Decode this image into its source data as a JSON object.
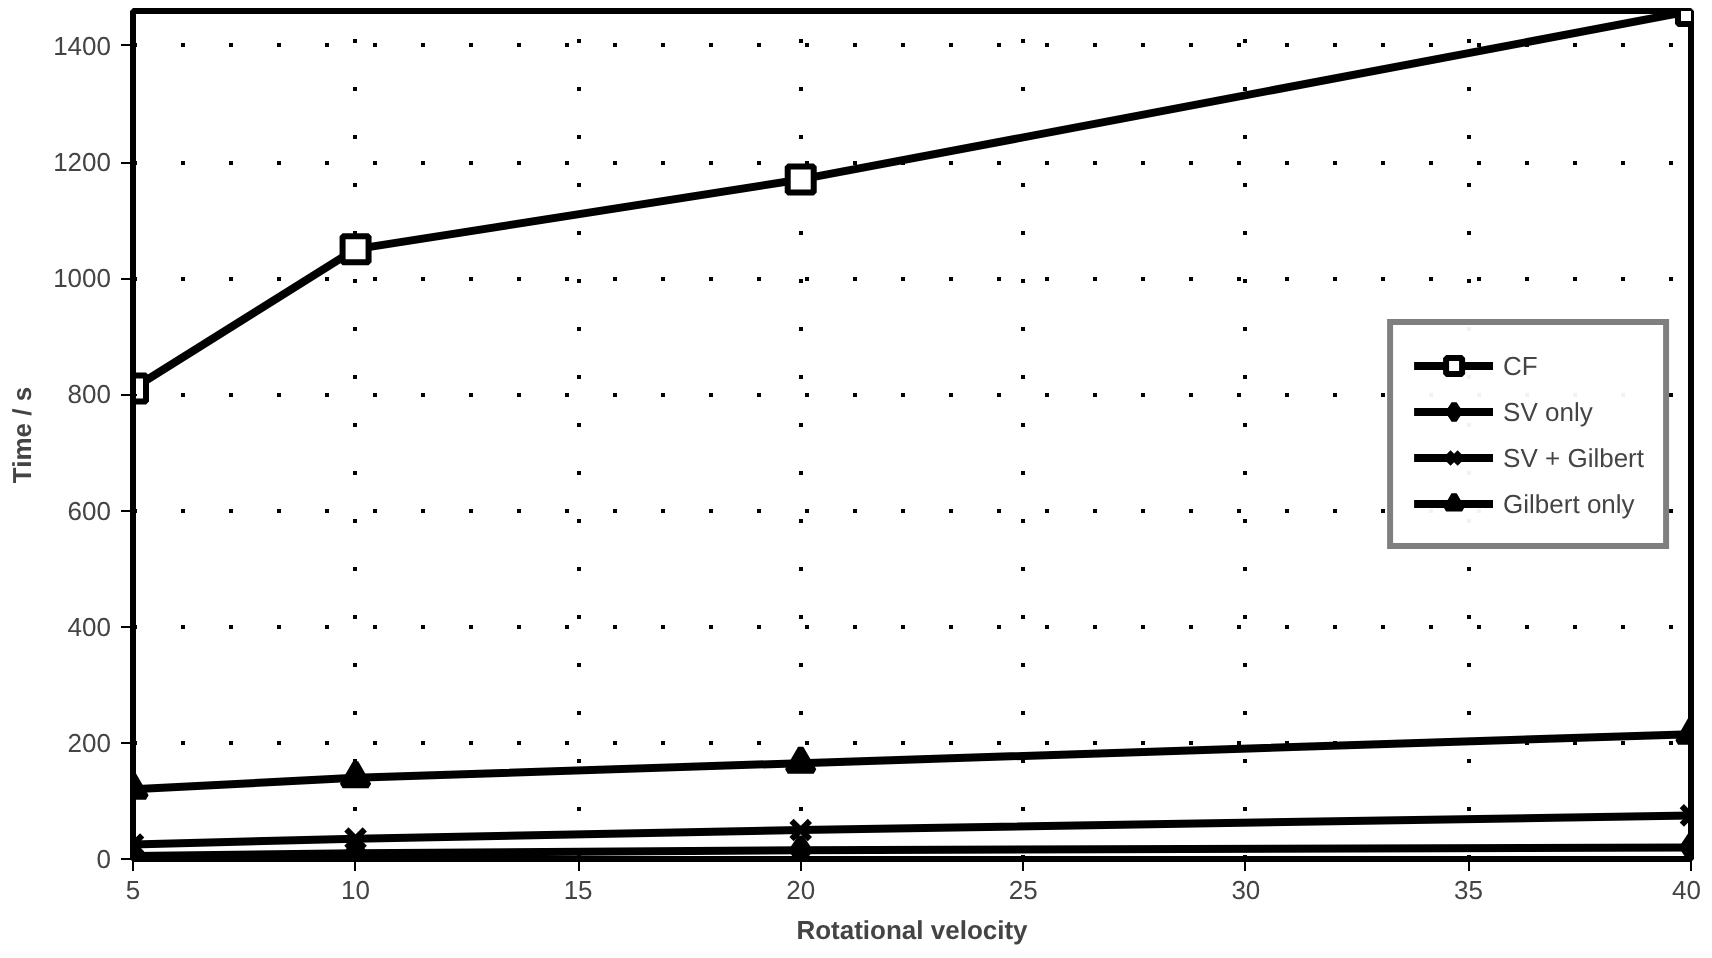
{
  "chart_data": {
    "type": "line",
    "xlabel": "Rotational velocity",
    "ylabel": "Time / s",
    "x": [
      5,
      10,
      20,
      40
    ],
    "series": [
      {
        "name": "CF",
        "color": "#000000",
        "marker": "square",
        "values": [
          810,
          1050,
          1170,
          1460
        ]
      },
      {
        "name": "SV only",
        "color": "#000000",
        "marker": "diamond",
        "values": [
          5,
          10,
          15,
          20
        ]
      },
      {
        "name": "SV + Gilbert",
        "color": "#000000",
        "marker": "cross",
        "values": [
          25,
          35,
          50,
          75
        ]
      },
      {
        "name": "Gilbert only",
        "color": "#000000",
        "marker": "triangle",
        "values": [
          120,
          140,
          165,
          215
        ]
      }
    ],
    "xlim": [
      5,
      40
    ],
    "xticks": [
      5,
      10,
      15,
      20,
      25,
      30,
      35,
      40
    ],
    "ylim": [
      0,
      1460
    ],
    "yticks": [
      0,
      200,
      400,
      600,
      800,
      1000,
      1200,
      1400
    ],
    "grid": true,
    "legend": "right",
    "line_style": "solid"
  }
}
